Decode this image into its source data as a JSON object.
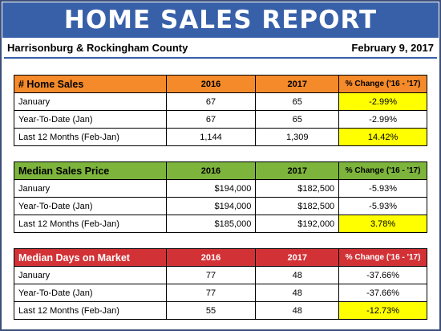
{
  "header": {
    "title": "HOME SALES REPORT",
    "region": "Harrisonburg & Rockingham County",
    "date": "February 9, 2017"
  },
  "colors": {
    "banner": "#3760a8",
    "sales_header": "#f48a2a",
    "price_header": "#7db43c",
    "days_header": "#d23236",
    "highlight": "#ffff00"
  },
  "tables": [
    {
      "title": "# Home Sales",
      "col_2016": "2016",
      "col_2017": "2017",
      "col_change": "% Change ('16 - '17)",
      "rows": [
        {
          "label": "January",
          "v2016": "67",
          "v2017": "65",
          "change": "-2.99%",
          "highlight": true
        },
        {
          "label": "Year-To-Date (Jan)",
          "v2016": "67",
          "v2017": "65",
          "change": "-2.99%",
          "highlight": false
        },
        {
          "label": "Last 12 Months (Feb-Jan)",
          "v2016": "1,144",
          "v2017": "1,309",
          "change": "14.42%",
          "highlight": true
        }
      ]
    },
    {
      "title": "Median Sales Price",
      "col_2016": "2016",
      "col_2017": "2017",
      "col_change": "% Change ('16 - '17)",
      "rows": [
        {
          "label": "January",
          "v2016": "$194,000",
          "v2017": "$182,500",
          "change": "-5.93%",
          "highlight": false
        },
        {
          "label": "Year-To-Date (Jan)",
          "v2016": "$194,000",
          "v2017": "$182,500",
          "change": "-5.93%",
          "highlight": false
        },
        {
          "label": "Last 12 Months (Feb-Jan)",
          "v2016": "$185,000",
          "v2017": "$192,000",
          "change": "3.78%",
          "highlight": true
        }
      ]
    },
    {
      "title": "Median Days on Market",
      "col_2016": "2016",
      "col_2017": "2017",
      "col_change": "% Change ('16 - '17)",
      "rows": [
        {
          "label": "January",
          "v2016": "77",
          "v2017": "48",
          "change": "-37.66%",
          "highlight": false
        },
        {
          "label": "Year-To-Date (Jan)",
          "v2016": "77",
          "v2017": "48",
          "change": "-37.66%",
          "highlight": false
        },
        {
          "label": "Last 12 Months (Feb-Jan)",
          "v2016": "55",
          "v2017": "48",
          "change": "-12.73%",
          "highlight": true
        }
      ]
    }
  ]
}
